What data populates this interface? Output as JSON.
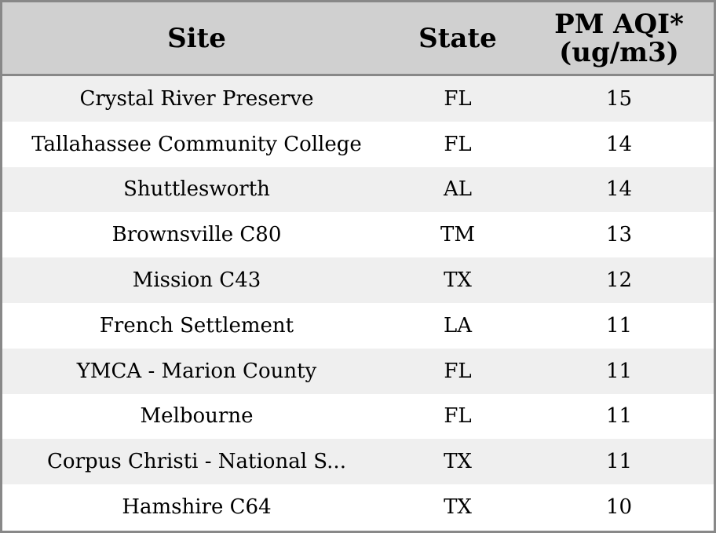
{
  "table": {
    "headers": {
      "site": "Site",
      "state": "State",
      "value_line1": "PM AQI*",
      "value_line2": "(ug/m3)"
    },
    "rows": [
      {
        "site": "Crystal River Preserve",
        "state": "FL",
        "value": "15"
      },
      {
        "site": "Tallahassee Community College",
        "state": "FL",
        "value": "14"
      },
      {
        "site": "Shuttlesworth",
        "state": "AL",
        "value": "14"
      },
      {
        "site": "Brownsville C80",
        "state": "TM",
        "value": "13"
      },
      {
        "site": "Mission C43",
        "state": "TX",
        "value": "12"
      },
      {
        "site": "French Settlement",
        "state": "LA",
        "value": "11"
      },
      {
        "site": "YMCA - Marion County",
        "state": "FL",
        "value": "11"
      },
      {
        "site": "Melbourne",
        "state": "FL",
        "value": "11"
      },
      {
        "site": "Corpus Christi - National S...",
        "state": "TX",
        "value": "11"
      },
      {
        "site": "Hamshire C64",
        "state": "TX",
        "value": "10"
      }
    ]
  },
  "colors": {
    "header_bg": "#d0d0d0",
    "row_alt_bg": "#efefef",
    "row_bg": "#ffffff",
    "border": "#888888"
  }
}
